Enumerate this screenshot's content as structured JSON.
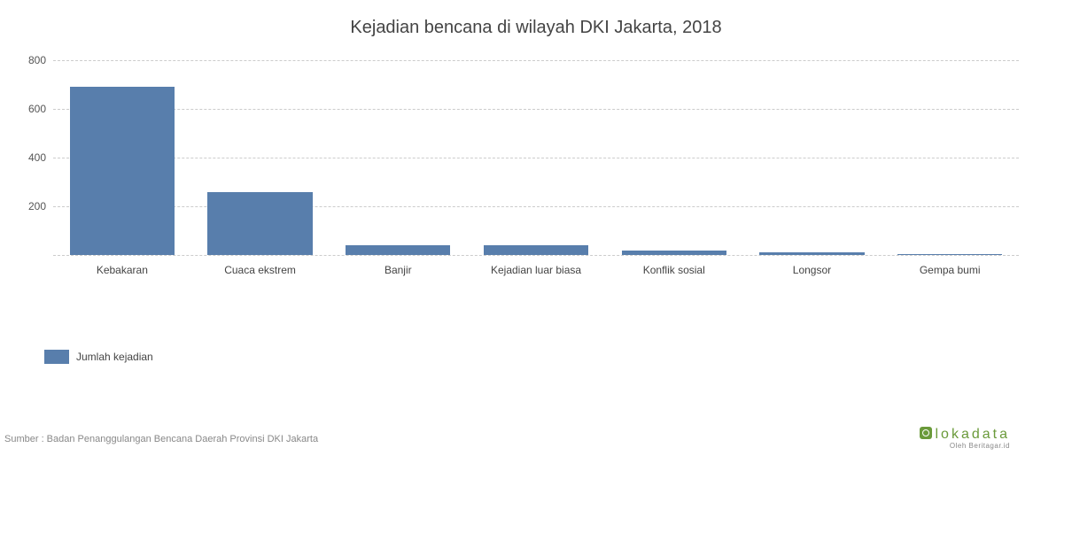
{
  "chart": {
    "type": "bar",
    "title": "Kejadian bencana di wilayah DKI Jakarta, 2018",
    "title_fontsize": 20,
    "title_color": "#444444",
    "categories": [
      "Kebakaran",
      "Cuaca ekstrem",
      "Banjir",
      "Kejadian luar biasa",
      "Konflik sosial",
      "Longsor",
      "Gempa bumi"
    ],
    "values": [
      690,
      260,
      40,
      40,
      20,
      12,
      2
    ],
    "bar_color": "#587eac",
    "bar_width": 0.76,
    "ylim": [
      0,
      800
    ],
    "yticks": [
      0,
      200,
      400,
      600,
      800
    ],
    "ytick_fontsize": 12,
    "ytick_color": "#555555",
    "xtick_fontsize": 12,
    "xtick_color": "#444444",
    "grid_color": "#cccccc",
    "grid_style": "dashed",
    "background_color": "#ffffff"
  },
  "legend": {
    "swatch_color": "#587eac",
    "label": "Jumlah kejadian",
    "label_fontsize": 12
  },
  "source": {
    "text": "Sumber : Badan Penanggulangan Bencana Daerah Provinsi DKI Jakarta",
    "fontsize": 11,
    "color": "#888888"
  },
  "brand": {
    "main": "lokadata",
    "sub": "Oleh Beritagar.id",
    "color": "#6a9a3a"
  }
}
